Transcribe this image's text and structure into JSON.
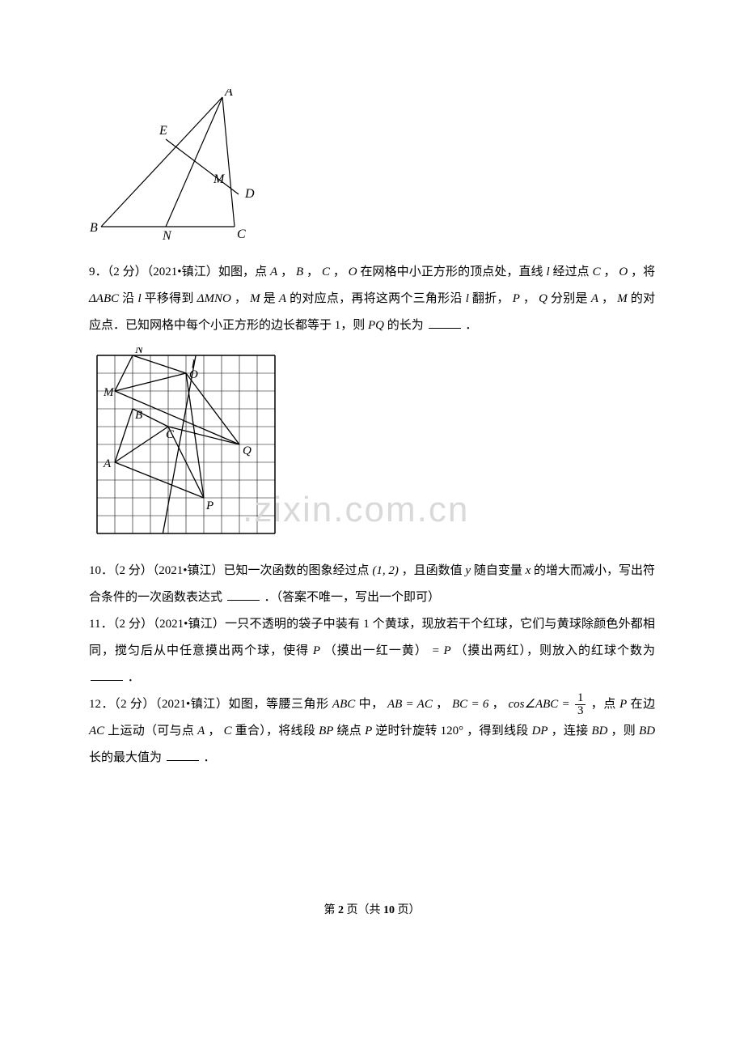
{
  "figure1": {
    "type": "geometry-diagram",
    "stroke": "#000000",
    "stroke_width": 1.2,
    "labels": {
      "A": "A",
      "B": "B",
      "C": "C",
      "D": "D",
      "E": "E",
      "M": "M",
      "N": "N"
    },
    "label_font": "italic 16px Times New Roman",
    "points": {
      "A": [
        165,
        10
      ],
      "B": [
        15,
        170
      ],
      "C": [
        180,
        170
      ],
      "N": [
        95,
        170
      ],
      "D": [
        185,
        130
      ],
      "E": [
        95,
        62
      ],
      "M": [
        150,
        108
      ]
    },
    "segments": [
      [
        "A",
        "B"
      ],
      [
        "B",
        "C"
      ],
      [
        "A",
        "C"
      ],
      [
        "A",
        "N"
      ],
      [
        "E",
        "D"
      ]
    ]
  },
  "q9": {
    "prefix": "9．（2 分）（2021•镇江）如图，点",
    "t1": "A",
    "t2": "，",
    "t3": "B",
    "t4": "，",
    "t5": "C",
    "t6": "，",
    "t7": "O",
    "t8": "在网格中小正方形的顶点处，直线",
    "t9": "l",
    "t10": "经过点",
    "t11": "C",
    "t12": "，",
    "t13": "O",
    "t14": "，将",
    "t15": "ΔABC",
    "t16": "沿",
    "t17": "l",
    "t18": "平移得到",
    "t19": "ΔMNO",
    "t20": "，",
    "t21": "M",
    "t22": "是",
    "t23": "A",
    "t24": "的对应点，再将这两个三角形沿",
    "t25": "l",
    "t26": "翻折，",
    "t27": "P",
    "t28": "，",
    "t29": "Q",
    "t30": "分别是",
    "t31": "A",
    "t32": "，",
    "t33": "M",
    "t34": "的对应点．已知网格中每个小正方形的边长都等于 1，则",
    "t35": "PQ",
    "t36": "的长为",
    "t37": "．"
  },
  "figure2": {
    "type": "grid-diagram",
    "cols": 10,
    "rows": 10,
    "cell": 22,
    "stroke": "#000000",
    "border_width": 1.5,
    "grid_width": 0.6,
    "labels": {
      "N": "N",
      "O": "O",
      "M": "M",
      "B": "B",
      "C": "C",
      "Q": "Q",
      "A": "A",
      "P": "P",
      "l": "l"
    },
    "label_font": "italic 15px Times New Roman",
    "points_grid": {
      "N": [
        2,
        0
      ],
      "O": [
        5,
        1
      ],
      "M": [
        1,
        2
      ],
      "B": [
        2,
        3
      ],
      "C": [
        4,
        4
      ],
      "Q": [
        8,
        5
      ],
      "A": [
        1,
        6
      ],
      "P": [
        6,
        8
      ]
    },
    "line_l": [
      [
        5.55,
        0
      ],
      [
        3.7,
        10
      ]
    ],
    "segments_grid": [
      [
        "A",
        "B"
      ],
      [
        "B",
        "C"
      ],
      [
        "A",
        "C"
      ],
      [
        "M",
        "N"
      ],
      [
        "N",
        "O"
      ],
      [
        "M",
        "O"
      ],
      [
        "C",
        "P"
      ],
      [
        "C",
        "Q"
      ],
      [
        "O",
        "Q"
      ],
      [
        "O",
        "P"
      ],
      [
        "A",
        "P"
      ],
      [
        "M",
        "Q"
      ]
    ]
  },
  "q10": {
    "p1": "10．（2 分）（2021•镇江）已知一次函数的图象经过点",
    "p2": "(1, 2)",
    "p3": "，且函数值",
    "p4": "y",
    "p5": "随自变量",
    "p6": "x",
    "p7": "的增大而减小，写出符合条件的一次函数表达式",
    "p8": "．（答案不唯一，写出一个即可）"
  },
  "q11": {
    "p1": "11．（2 分）（2021•镇江）一只不透明的袋子中装有 1 个黄球，现放若干个红球，它们与黄球除颜色外都相同，搅匀后从中任意摸出两个球，使得",
    "p2": "P",
    "p3": "（摸出一红一黄）",
    "p4": "= P",
    "p5": "（摸出两红），则放入的红球个数为",
    "p6": "．"
  },
  "q12": {
    "p1": "12．（2 分）（2021•镇江）如图，等腰三角形",
    "p2": "ABC",
    "p3": "中，",
    "p4": "AB = AC",
    "p5": "，",
    "p6": "BC = 6",
    "p7": "，",
    "p8a": "cos∠ABC =",
    "frac_num": "1",
    "frac_den": "3",
    "p9": "，点",
    "p10": "P",
    "p11": "在边",
    "p12": "AC",
    "p13": "上运动（可与点",
    "p14": "A",
    "p15": "，",
    "p16": "C",
    "p17": "重合），将线段",
    "p18": "BP",
    "p19": "绕点",
    "p20": "P",
    "p21": "逆时针旋转",
    "p22": "120°",
    "p23": "，得到线段",
    "p24": "DP",
    "p25": "，连接",
    "p26": "BD",
    "p27": "，则",
    "p28": "BD",
    "p29": "长的最大值为",
    "p30": "．"
  },
  "watermark_text": ".zixin.com.cn",
  "footer": {
    "a": "第 ",
    "page": "2",
    "b": " 页（共 ",
    "total": "10",
    "c": " 页）"
  }
}
